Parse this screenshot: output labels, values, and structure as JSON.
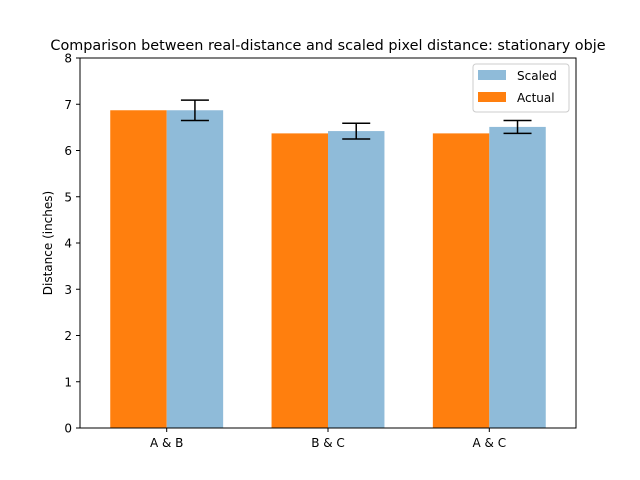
{
  "chart_data": {
    "type": "bar",
    "title": "Comparison between real-distance and scaled pixel distance: stationary obje",
    "xlabel": "",
    "ylabel": "Distance (inches)",
    "categories": [
      "A & B",
      "B & C",
      "A & C"
    ],
    "ylim": [
      0,
      8
    ],
    "yticks": [
      "0",
      "1",
      "2",
      "3",
      "4",
      "5",
      "6",
      "7",
      "8"
    ],
    "grid": false,
    "legend_position": "top-right",
    "series": [
      {
        "name": "Actual",
        "values": [
          6.87,
          6.37,
          6.37
        ],
        "color": "#ff7f0e"
      },
      {
        "name": "Scaled",
        "values": [
          6.87,
          6.42,
          6.51
        ],
        "color": "#8fbbd9",
        "error": [
          0.22,
          0.17,
          0.14
        ]
      }
    ],
    "legend_order": [
      "Scaled",
      "Actual"
    ]
  }
}
